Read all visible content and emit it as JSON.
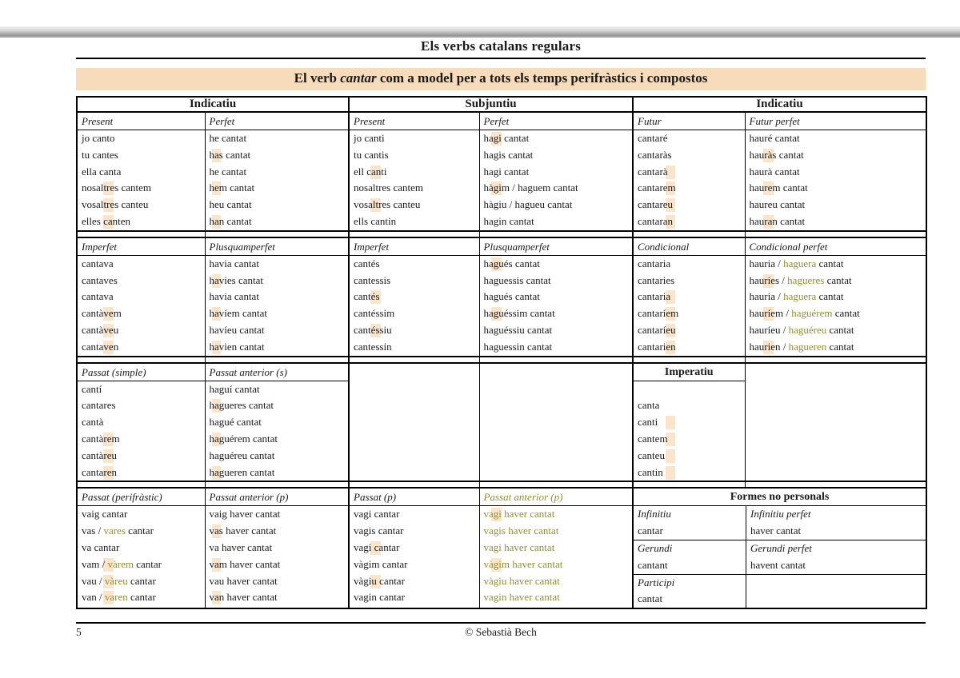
{
  "page": {
    "title": "Els verbs catalans regulars",
    "subtitle": {
      "pre": "El verb ",
      "verb": "cantar",
      "post": " com a model per a tots els temps perifràstics i compostos"
    },
    "footer": {
      "page_number": "5",
      "copyright": "© Sebastià Bech"
    }
  },
  "colors": {
    "banner_bg": "#f7dcbb",
    "olive_text": "#8f8f33",
    "highlight": "#f5cfa0"
  },
  "table": {
    "group_headers": [
      "Indicatiu",
      "Subjuntiu",
      "Indicatiu"
    ],
    "blocks": [
      {
        "columns": [
          {
            "header": "Present",
            "lines": [
              "jo canto",
              "tu cantes",
              "ella canta",
              "nosaltres cantem",
              "vosaltres canteu",
              "elles canten"
            ]
          },
          {
            "header": "Perfet",
            "lines": [
              "he cantat",
              "has cantat",
              "he cantat",
              "hem cantat",
              "heu cantat",
              "han cantat"
            ]
          },
          {
            "header": "Present",
            "lines": [
              "jo canti",
              "tu cantis",
              "ell canti",
              "nosaltres cantem",
              "vosaltres canteu",
              "ells cantin"
            ]
          },
          {
            "header": "Perfet",
            "lines": [
              "hagi cantat",
              "hagis cantat",
              "hagi cantat",
              "hàgim / haguem cantat",
              "hàgiu / hagueu cantat",
              "hagin cantat"
            ]
          },
          {
            "header": "Futur",
            "lines": [
              "cantaré",
              "cantaràs",
              "cantarà",
              "cantarem",
              "cantareu",
              "cantaran"
            ]
          },
          {
            "header": "Futur perfet",
            "lines": [
              "hauré cantat",
              "hauràs cantat",
              "haurà cantat",
              "haurem cantat",
              "haureu cantat",
              "hauran cantat"
            ]
          }
        ]
      },
      {
        "columns": [
          {
            "header": "Imperfet",
            "lines": [
              "cantava",
              "cantaves",
              "cantava",
              "cantàvem",
              "cantàveu",
              "cantaven"
            ]
          },
          {
            "header": "Plusquamperfet",
            "lines": [
              "havia cantat",
              "havies cantat",
              "havia cantat",
              "havíem cantat",
              "havíeu cantat",
              "havien cantat"
            ]
          },
          {
            "header": "Imperfet",
            "lines": [
              "cantés",
              "cantessis",
              "cantés",
              "cantéssim",
              "cantéssiu",
              "cantessin"
            ]
          },
          {
            "header": "Plusquamperfet",
            "lines": [
              "hagués cantat",
              "haguessis cantat",
              "hagués cantat",
              "haguéssim cantat",
              "haguéssiu cantat",
              "haguessin cantat"
            ]
          },
          {
            "header": "Condicional",
            "lines": [
              "cantaria",
              "cantaries",
              "cantaria",
              "cantaríem",
              "cantaríeu",
              "cantarien"
            ]
          },
          {
            "header": "Condicional perfet",
            "lines": [
              [
                {
                  "t": "hauria / "
                },
                {
                  "t": "haguera",
                  "c": "olive"
                },
                {
                  "t": " cantat"
                }
              ],
              [
                {
                  "t": "hauries / "
                },
                {
                  "t": "hagueres",
                  "c": "olive"
                },
                {
                  "t": " cantat"
                }
              ],
              [
                {
                  "t": "hauria / "
                },
                {
                  "t": "haguera",
                  "c": "olive"
                },
                {
                  "t": " cantat"
                }
              ],
              [
                {
                  "t": "hauríem / "
                },
                {
                  "t": "haguérem",
                  "c": "olive"
                },
                {
                  "t": " cantat"
                }
              ],
              [
                {
                  "t": "hauríeu / "
                },
                {
                  "t": "haguéreu",
                  "c": "olive"
                },
                {
                  "t": " cantat"
                }
              ],
              [
                {
                  "t": "haurien / "
                },
                {
                  "t": "hagueren",
                  "c": "olive"
                },
                {
                  "t": " cantat"
                }
              ]
            ]
          }
        ]
      },
      {
        "columns": [
          {
            "header": "Passat (simple)",
            "lines": [
              "cantí",
              "cantares",
              "cantà",
              "cantàrem",
              "cantàreu",
              "cantaren"
            ]
          },
          {
            "header": "Passat anterior (s)",
            "lines": [
              "haguí cantat",
              "hagueres cantat",
              "hagué cantat",
              "haguérem cantat",
              "haguéreu cantat",
              "hagueren cantat"
            ]
          },
          {
            "type": "empty"
          },
          {
            "type": "empty"
          },
          {
            "header": "Imperatiu",
            "header_class": "imp",
            "lines": [
              "",
              "canta",
              "canti",
              "cantem",
              "canteu",
              "cantin"
            ]
          },
          {
            "type": "empty"
          }
        ]
      },
      {
        "columns": [
          {
            "header": "Passat (perifràstic)",
            "lines": [
              "vaig cantar",
              [
                {
                  "t": "vas / "
                },
                {
                  "t": "vares",
                  "c": "olive"
                },
                {
                  "t": " cantar"
                }
              ],
              "va cantar",
              [
                {
                  "t": "vam / "
                },
                {
                  "t": "vàrem",
                  "c": "olive"
                },
                {
                  "t": " cantar"
                }
              ],
              [
                {
                  "t": "vau / "
                },
                {
                  "t": "vàreu",
                  "c": "olive"
                },
                {
                  "t": " cantar"
                }
              ],
              [
                {
                  "t": "van / "
                },
                {
                  "t": "varen",
                  "c": "olive"
                },
                {
                  "t": " cantar"
                }
              ]
            ]
          },
          {
            "header": "Passat anterior (p)",
            "lines": [
              "vaig haver cantat",
              "vas haver cantat",
              "va haver cantat",
              "vam haver cantat",
              "vau haver cantat",
              "van haver cantat"
            ]
          },
          {
            "header": "Passat (p)",
            "lines": [
              "vagi cantar",
              "vagis cantar",
              "vagi cantar",
              "vàgim cantar",
              "vàgiu cantar",
              "vagin cantar"
            ]
          },
          {
            "header": "Passat anterior (p)",
            "color": "olive",
            "lines": [
              "vagi haver cantat",
              "vagis haver cantat",
              "vagi haver cantat",
              "vàgim haver cantat",
              "vàgiu haver cantat",
              "vagin haver cantat"
            ]
          },
          {
            "type": "formes",
            "title": "Formes no personals",
            "groups": [
              {
                "left": {
                  "label": "Infinitiu",
                  "value": "cantar"
                },
                "right": {
                  "label": "Infinitiu perfet",
                  "value": "haver cantat"
                }
              },
              {
                "left": {
                  "label": "Gerundi",
                  "value": "cantant"
                },
                "right": {
                  "label": "Gerundi perfet",
                  "value": "havent cantat"
                }
              },
              {
                "left": {
                  "label": "Participi",
                  "value": "cantat"
                },
                "right": {
                  "label": "",
                  "value": ""
                }
              }
            ]
          }
        ]
      }
    ]
  }
}
